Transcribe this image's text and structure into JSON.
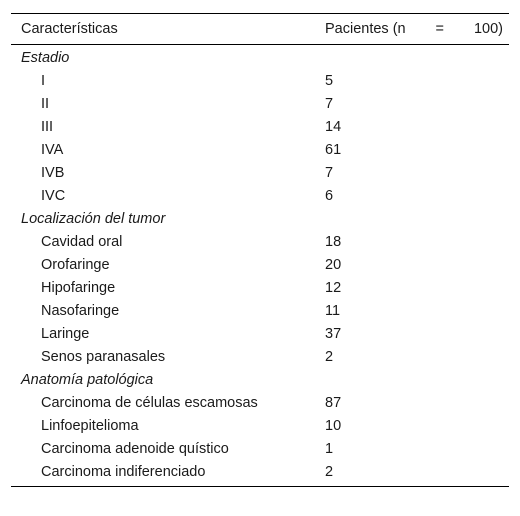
{
  "table": {
    "header": {
      "characteristics": "Características",
      "patients_prefix": "Pacientes (n",
      "patients_eq": "=",
      "patients_count": "100)"
    },
    "sections": [
      {
        "title": "Estadio",
        "rows": [
          {
            "label": "I",
            "value": "5"
          },
          {
            "label": "II",
            "value": "7"
          },
          {
            "label": "III",
            "value": "14"
          },
          {
            "label": "IVA",
            "value": "61"
          },
          {
            "label": "IVB",
            "value": "7"
          },
          {
            "label": "IVC",
            "value": "6"
          }
        ]
      },
      {
        "title": "Localización del tumor",
        "rows": [
          {
            "label": "Cavidad oral",
            "value": "18"
          },
          {
            "label": "Orofaringe",
            "value": "20"
          },
          {
            "label": "Hipofaringe",
            "value": "12"
          },
          {
            "label": "Nasofaringe",
            "value": "11"
          },
          {
            "label": "Laringe",
            "value": "37"
          },
          {
            "label": "Senos paranasales",
            "value": "2"
          }
        ]
      },
      {
        "title": "Anatomía patológica",
        "rows": [
          {
            "label": "Carcinoma de células escamosas",
            "value": "87"
          },
          {
            "label": "Linfoepitelioma",
            "value": "10"
          },
          {
            "label": "Carcinoma adenoide quístico",
            "value": "1"
          },
          {
            "label": "Carcinoma indiferenciado",
            "value": "2"
          }
        ]
      }
    ]
  }
}
